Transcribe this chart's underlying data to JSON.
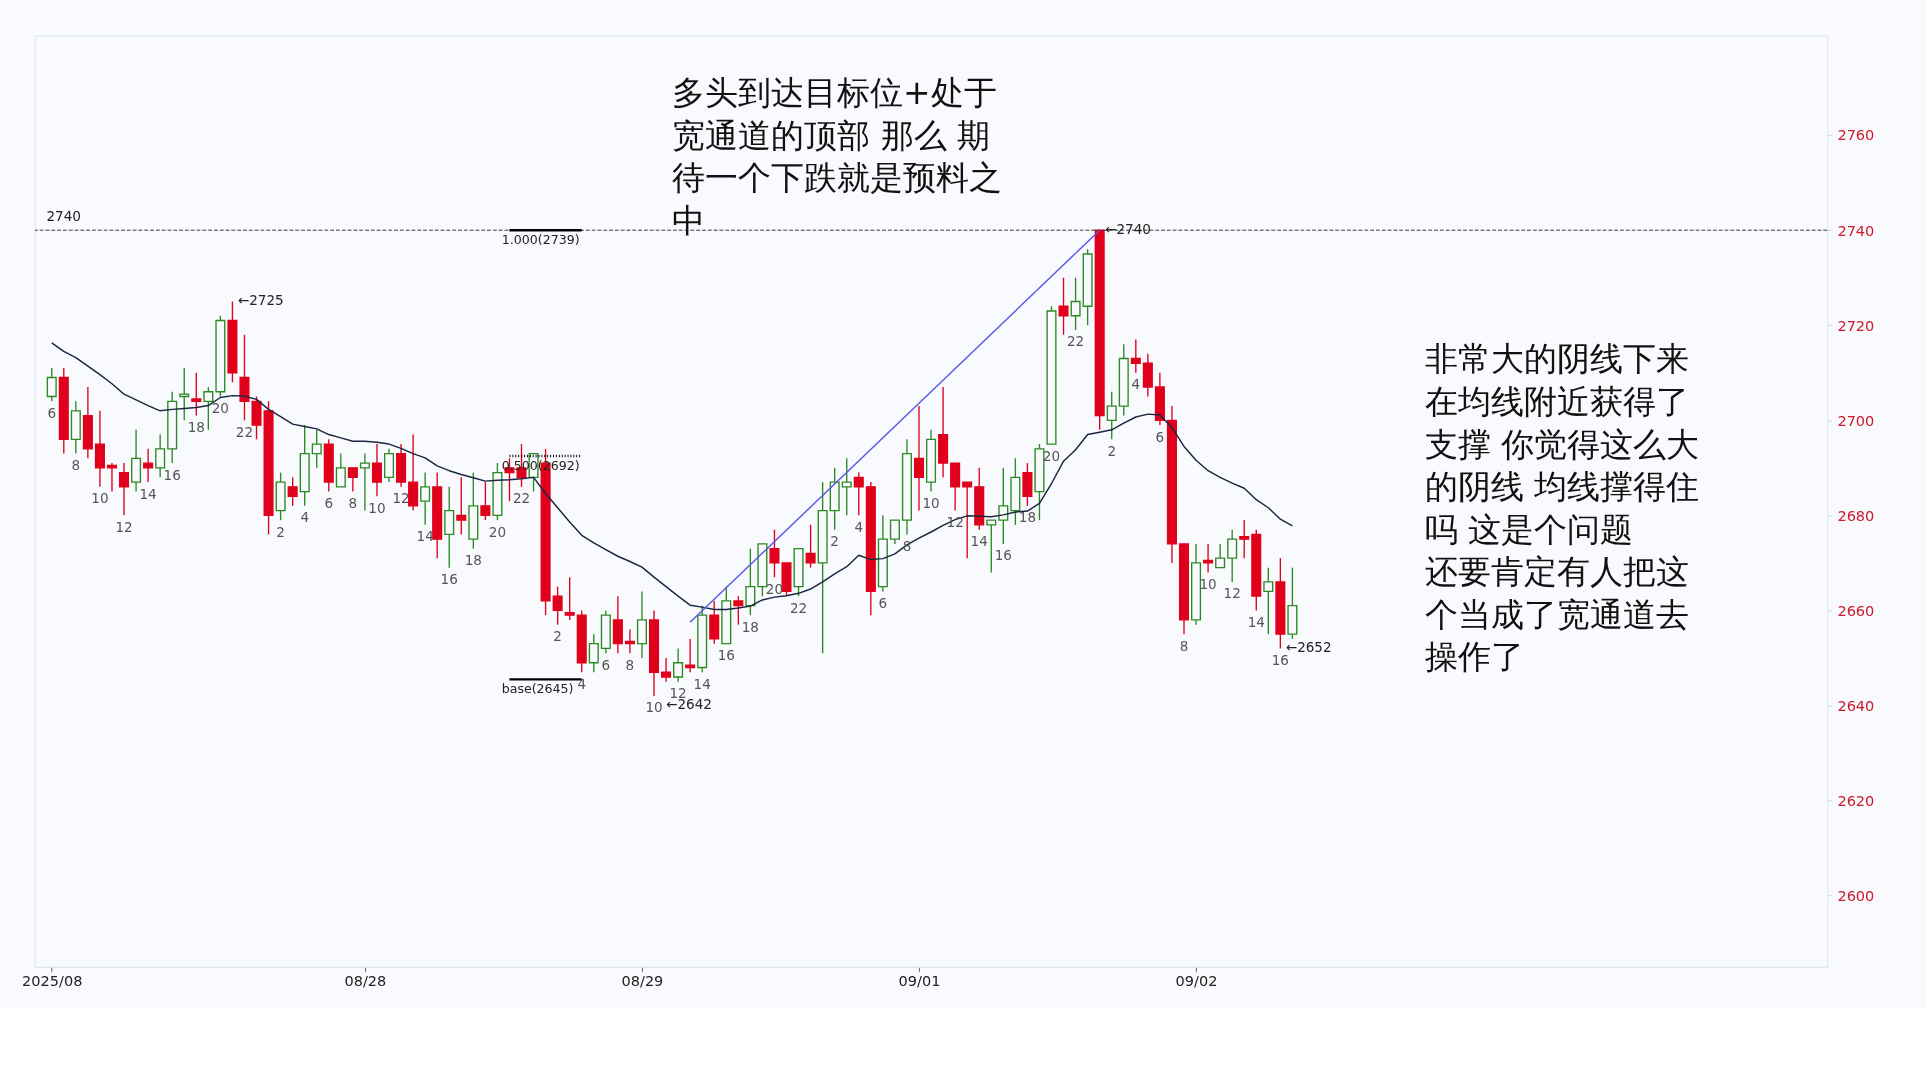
{
  "chart_data": {
    "type": "candlestick",
    "categories": [
      "2025/08",
      null,
      null,
      null,
      null,
      null,
      null,
      null,
      null,
      null,
      null,
      null,
      null,
      null,
      null,
      null,
      null,
      null,
      null,
      null,
      null,
      null,
      null,
      null,
      null,
      null,
      "08/28",
      null,
      null,
      null,
      null,
      null,
      null,
      null,
      null,
      null,
      null,
      null,
      null,
      null,
      null,
      null,
      null,
      null,
      null,
      null,
      null,
      null,
      null,
      "08/29",
      null,
      null,
      null,
      null,
      null,
      null,
      null,
      null,
      null,
      null,
      null,
      null,
      null,
      null,
      null,
      null,
      null,
      null,
      null,
      null,
      null,
      null,
      "09/01",
      null,
      null,
      null,
      null,
      null,
      null,
      null,
      null,
      null,
      null,
      null,
      null,
      null,
      null,
      null,
      null,
      null,
      null,
      null,
      null,
      null,
      null,
      "09/02",
      null,
      null,
      null,
      null,
      null,
      null,
      null,
      null
    ],
    "ohlc": [
      [
        2705,
        2711,
        2704,
        2709
      ],
      [
        2709,
        2711,
        2693,
        2696
      ],
      [
        2696,
        2704,
        2693,
        2702
      ],
      [
        2701,
        2707,
        2692,
        2694
      ],
      [
        2695,
        2702,
        2686,
        2690
      ],
      [
        2690.5,
        2691,
        2685,
        2690
      ],
      [
        2689,
        2691,
        2680,
        2686
      ],
      [
        2687,
        2698,
        2685,
        2692
      ],
      [
        2691,
        2694,
        2687,
        2690
      ],
      [
        2690,
        2697,
        2688,
        2694
      ],
      [
        2694,
        2706,
        2691,
        2704
      ],
      [
        2705,
        2711,
        2700,
        2705.5
      ],
      [
        2704.5,
        2710,
        2701,
        2704
      ],
      [
        2704,
        2707,
        2698,
        2706
      ],
      [
        2706,
        2722,
        2705,
        2721
      ],
      [
        2721,
        2725,
        2708,
        2710
      ],
      [
        2709,
        2718,
        2700,
        2704
      ],
      [
        2704,
        2705,
        2696,
        2699
      ],
      [
        2702,
        2704,
        2676,
        2680
      ],
      [
        2681,
        2689,
        2679,
        2687
      ],
      [
        2686,
        2688,
        2682,
        2684
      ],
      [
        2685,
        2699,
        2682,
        2693
      ],
      [
        2693,
        2698,
        2690,
        2695
      ],
      [
        2695,
        2696,
        2685,
        2687
      ],
      [
        2686,
        2693,
        2686,
        2690
      ],
      [
        2690,
        2690,
        2685,
        2688
      ],
      [
        2690,
        2693,
        2681,
        2691
      ],
      [
        2691,
        2695,
        2684,
        2687
      ],
      [
        2688,
        2694,
        2687,
        2693
      ],
      [
        2693,
        2695,
        2686,
        2687
      ],
      [
        2687,
        2697,
        2681,
        2682
      ],
      [
        2683,
        2689,
        2678,
        2686
      ],
      [
        2686,
        2689,
        2671,
        2675
      ],
      [
        2676,
        2686,
        2669,
        2681
      ],
      [
        2680,
        2688,
        2676,
        2679
      ],
      [
        2675,
        2689,
        2673,
        2682
      ],
      [
        2682,
        2687,
        2679,
        2680
      ],
      [
        2680,
        2691,
        2679,
        2689
      ],
      [
        2690,
        2692,
        2683,
        2689
      ],
      [
        2690,
        2695,
        2686,
        2688
      ],
      [
        2688,
        2693,
        2685,
        2693
      ],
      [
        2691,
        2694,
        2659,
        2662
      ],
      [
        2663,
        2665,
        2657,
        2660
      ],
      [
        2659.5,
        2667,
        2658,
        2659
      ],
      [
        2659,
        2660,
        2647,
        2649
      ],
      [
        2649,
        2655,
        2647,
        2653
      ],
      [
        2652,
        2660,
        2651,
        2659
      ],
      [
        2658,
        2663,
        2651,
        2653
      ],
      [
        2653.5,
        2656,
        2651,
        2653
      ],
      [
        2653,
        2664,
        2650,
        2658
      ],
      [
        2658,
        2660,
        2642,
        2647
      ],
      [
        2647,
        2650,
        2645,
        2646
      ],
      [
        2646,
        2652,
        2645,
        2649
      ],
      [
        2648.5,
        2654,
        2647,
        2648
      ],
      [
        2648,
        2661,
        2647,
        2659
      ],
      [
        2659,
        2662,
        2653,
        2654
      ],
      [
        2653,
        2665,
        2653,
        2662
      ],
      [
        2662,
        2663,
        2657,
        2661
      ],
      [
        2661,
        2673,
        2659,
        2665
      ],
      [
        2665,
        2674,
        2663,
        2674
      ],
      [
        2673,
        2677,
        2667,
        2670
      ],
      [
        2670,
        2670,
        2663,
        2664
      ],
      [
        2665,
        2673,
        2663,
        2673
      ],
      [
        2672,
        2678,
        2669,
        2670
      ],
      [
        2670,
        2687,
        2651,
        2681
      ],
      [
        2681,
        2690,
        2677,
        2687
      ],
      [
        2686,
        2692,
        2680,
        2687
      ],
      [
        2688,
        2689,
        2680,
        2686
      ],
      [
        2686,
        2687,
        2659,
        2664
      ],
      [
        2665,
        2680,
        2664,
        2675
      ],
      [
        2675,
        2679,
        2674,
        2679
      ],
      [
        2679,
        2696,
        2676,
        2693
      ],
      [
        2692,
        2703,
        2681,
        2688
      ],
      [
        2687,
        2698,
        2685,
        2696
      ],
      [
        2697,
        2707,
        2688,
        2691
      ],
      [
        2691,
        2691,
        2681,
        2686
      ],
      [
        2687,
        2687,
        2671,
        2686
      ],
      [
        2686,
        2690,
        2677,
        2678
      ],
      [
        2678,
        2679,
        2668,
        2679
      ],
      [
        2679,
        2690,
        2674,
        2682
      ],
      [
        2681,
        2692,
        2678,
        2688
      ],
      [
        2689,
        2691,
        2682,
        2684
      ],
      [
        2685,
        2695,
        2679,
        2694
      ],
      [
        2695,
        2724,
        2695,
        2723
      ],
      [
        2724,
        2730,
        2718,
        2722
      ],
      [
        2722,
        2730,
        2719,
        2725
      ],
      [
        2724,
        2736,
        2720,
        2735
      ],
      [
        2740,
        2740,
        2698,
        2701
      ],
      [
        2700,
        2706,
        2696,
        2703
      ],
      [
        2703,
        2716,
        2701,
        2713
      ],
      [
        2713,
        2717,
        2710,
        2712
      ],
      [
        2712,
        2714,
        2705,
        2707
      ],
      [
        2707,
        2710,
        2699,
        2700
      ],
      [
        2700,
        2703,
        2670,
        2674
      ],
      [
        2674,
        2674,
        2655,
        2658
      ],
      [
        2658,
        2674,
        2657,
        2670
      ],
      [
        2670.5,
        2674,
        2668,
        2670
      ],
      [
        2669,
        2674,
        2669,
        2671
      ],
      [
        2671,
        2677,
        2666,
        2675
      ],
      [
        2675.5,
        2679,
        2671,
        2675
      ],
      [
        2676,
        2677,
        2660,
        2663
      ],
      [
        2664,
        2669,
        2655,
        2666
      ],
      [
        2666,
        2671,
        2652,
        2655
      ],
      [
        2655,
        2669,
        2654,
        2661
      ]
    ],
    "colors": [
      "#2b8a22",
      "#e0001b",
      "#2b8a22",
      "#e0001b",
      "#e0001b",
      "#e0001b",
      "#e0001b",
      "#2b8a22",
      "#e0001b",
      "#2b8a22",
      "#2b8a22",
      "#2b8a22",
      "#e0001b",
      "#2b8a22",
      "#2b8a22",
      "#e0001b",
      "#e0001b",
      "#e0001b",
      "#e0001b",
      "#2b8a22",
      "#e0001b",
      "#2b8a22",
      "#2b8a22",
      "#e0001b",
      "#2b8a22",
      "#e0001b",
      "#2b8a22",
      "#e0001b",
      "#2b8a22",
      "#e0001b",
      "#e0001b",
      "#2b8a22",
      "#e0001b",
      "#2b8a22",
      "#e0001b",
      "#2b8a22",
      "#e0001b",
      "#2b8a22",
      "#e0001b",
      "#e0001b",
      "#2b8a22",
      "#e0001b",
      "#e0001b",
      "#e0001b",
      "#e0001b",
      "#2b8a22",
      "#2b8a22",
      "#e0001b",
      "#e0001b",
      "#2b8a22",
      "#e0001b",
      "#e0001b",
      "#2b8a22",
      "#e0001b",
      "#2b8a22",
      "#e0001b",
      "#2b8a22",
      "#e0001b",
      "#2b8a22",
      "#2b8a22",
      "#e0001b",
      "#e0001b",
      "#2b8a22",
      "#e0001b",
      "#2b8a22",
      "#2b8a22",
      "#2b8a22",
      "#e0001b",
      "#e0001b",
      "#2b8a22",
      "#2b8a22",
      "#2b8a22",
      "#e0001b",
      "#2b8a22",
      "#e0001b",
      "#e0001b",
      "#e0001b",
      "#e0001b",
      "#2b8a22",
      "#2b8a22",
      "#2b8a22",
      "#e0001b",
      "#2b8a22",
      "#2b8a22",
      "#e0001b",
      "#2b8a22",
      "#2b8a22",
      "#e0001b",
      "#2b8a22",
      "#2b8a22",
      "#e0001b",
      "#e0001b",
      "#e0001b",
      "#e0001b",
      "#e0001b",
      "#2b8a22",
      "#e0001b",
      "#2b8a22",
      "#2b8a22",
      "#e0001b",
      "#e0001b",
      "#2b8a22",
      "#e0001b",
      "#2b8a22"
    ],
    "value_labels": [
      "6",
      null,
      "8",
      null,
      "10",
      null,
      "12",
      null,
      "14",
      null,
      "16",
      null,
      "18",
      null,
      "20",
      null,
      "22",
      null,
      null,
      "2",
      null,
      "4",
      null,
      "6",
      null,
      "8",
      null,
      "10",
      null,
      "12",
      null,
      "14",
      null,
      "16",
      null,
      "18",
      null,
      "20",
      null,
      "22",
      null,
      null,
      "2",
      null,
      "4",
      null,
      "6",
      null,
      "8",
      null,
      "10",
      null,
      "12",
      null,
      "14",
      null,
      "16",
      null,
      "18",
      null,
      "20",
      null,
      "22",
      null,
      null,
      "2",
      null,
      "4",
      null,
      "6",
      null,
      "8",
      null,
      "10",
      null,
      "12",
      null,
      "14",
      null,
      "16",
      null,
      "18",
      null,
      "20",
      null,
      "22",
      null,
      null,
      "2",
      null,
      "4",
      null,
      "6",
      null,
      "8",
      null,
      "10",
      null,
      "12",
      null,
      "14",
      null,
      "16",
      null
    ],
    "series": [
      {
        "type": "line",
        "color": "#1c2541",
        "values": [
          2716.3,
          2714.5,
          2713.2,
          2711.4,
          2709.6,
          2707.7,
          2705.5,
          2704.3,
          2703.1,
          2702,
          2702.3,
          2702.5,
          2702.7,
          2703.1,
          2704.8,
          2705.2,
          2705.1,
          2704.4,
          2702.3,
          2700.8,
          2699.2,
          2698.7,
          2698.2,
          2697,
          2696.3,
          2695.6,
          2695.6,
          2695.4,
          2695,
          2694.1,
          2693,
          2692.1,
          2690.4,
          2689.4,
          2688.6,
          2687.9,
          2687.2,
          2687.4,
          2687.5,
          2687.7,
          2688,
          2684.6,
          2681.6,
          2678.6,
          2675.8,
          2674.2,
          2672.8,
          2671.4,
          2670.3,
          2669.1,
          2667,
          2665,
          2663,
          2661.1,
          2660.7,
          2660.2,
          2660.2,
          2660.5,
          2660.9,
          2662.2,
          2662.8,
          2663.1,
          2663.6,
          2664.5,
          2666,
          2667.7,
          2669.2,
          2671.6,
          2670.7,
          2670.9,
          2671.9,
          2673.8,
          2675.2,
          2676.5,
          2677.9,
          2679.1,
          2679.9,
          2679.8,
          2679.7,
          2680.1,
          2680.7,
          2680.9,
          2682.5,
          2686.7,
          2691.4,
          2693.8,
          2697,
          2697.5,
          2698,
          2699.4,
          2700.7,
          2701.3,
          2701.1,
          2698.5,
          2694.5,
          2691.6,
          2689.4,
          2688,
          2686.8,
          2685.7,
          2683.3,
          2681.6,
          2679.2,
          2677.8
        ]
      },
      {
        "type": "line",
        "color": "#5a5ae6",
        "values": [
          null,
          null,
          null,
          null,
          null,
          null,
          null,
          null,
          null,
          null,
          null,
          null,
          null,
          null,
          null,
          null,
          null,
          null,
          null,
          null,
          null,
          null,
          null,
          null,
          null,
          null,
          null,
          null,
          null,
          null,
          null,
          null,
          null,
          null,
          null,
          null,
          null,
          null,
          null,
          null,
          null,
          null,
          null,
          null,
          null,
          null,
          null,
          null,
          null,
          null,
          null,
          null,
          null,
          2657.5,
          null,
          null,
          null,
          null,
          null,
          null,
          null,
          null,
          null,
          null,
          null,
          null,
          null,
          null,
          null,
          null,
          null,
          null,
          null,
          null,
          null,
          null,
          null,
          null,
          null,
          null,
          null,
          null,
          null,
          null,
          null,
          null,
          null,
          2740,
          null,
          null,
          null,
          null,
          null,
          null,
          null,
          null,
          null,
          null,
          null,
          null,
          null,
          null,
          null,
          null
        ]
      },
      {
        "type": "line",
        "name": "1.000(2739)",
        "color": "#000000",
        "line_style": "solid",
        "values": [
          null,
          null,
          null,
          null,
          null,
          null,
          null,
          null,
          null,
          null,
          null,
          null,
          null,
          null,
          null,
          null,
          null,
          null,
          null,
          null,
          null,
          null,
          null,
          null,
          null,
          null,
          null,
          null,
          null,
          null,
          null,
          null,
          null,
          null,
          null,
          null,
          null,
          null,
          2740,
          2740,
          2740,
          2740,
          2740,
          2740,
          2740,
          null,
          null,
          null,
          null,
          null,
          null,
          null,
          null,
          null,
          null,
          null,
          null,
          null,
          null,
          null,
          null,
          null,
          null,
          null,
          null,
          null,
          null,
          null,
          null,
          null,
          null,
          null,
          null,
          null,
          null,
          null,
          null,
          null,
          null,
          null,
          null,
          null,
          null,
          null,
          null,
          null,
          null,
          null,
          null,
          null,
          null,
          null,
          null,
          null,
          null,
          null,
          null,
          null,
          null,
          null,
          null,
          null,
          null,
          null
        ]
      },
      {
        "type": "line",
        "name": "0.500(2692)",
        "color": "#000000",
        "line_style": "dotted",
        "values": [
          null,
          null,
          null,
          null,
          null,
          null,
          null,
          null,
          null,
          null,
          null,
          null,
          null,
          null,
          null,
          null,
          null,
          null,
          null,
          null,
          null,
          null,
          null,
          null,
          null,
          null,
          null,
          null,
          null,
          null,
          null,
          null,
          null,
          null,
          null,
          null,
          null,
          null,
          2692.5,
          2692.5,
          2692.5,
          2692.5,
          2692.5,
          2692.5,
          2692.5,
          null,
          null,
          null,
          null,
          null,
          null,
          null,
          null,
          null,
          null,
          null,
          null,
          null,
          null,
          null,
          null,
          null,
          null,
          null,
          null,
          null,
          null,
          null,
          null,
          null,
          null,
          null,
          null,
          null,
          null,
          null,
          null,
          null,
          null,
          null,
          null,
          null,
          null,
          null,
          null,
          null,
          null,
          null,
          null,
          null,
          null,
          null,
          null,
          null,
          null,
          null,
          null,
          null,
          null,
          null,
          null,
          null,
          null,
          null
        ]
      },
      {
        "type": "line",
        "name": "base(2645)",
        "color": "#000000",
        "line_style": "solid",
        "values": [
          null,
          null,
          null,
          null,
          null,
          null,
          null,
          null,
          null,
          null,
          null,
          null,
          null,
          null,
          null,
          null,
          null,
          null,
          null,
          null,
          null,
          null,
          null,
          null,
          null,
          null,
          null,
          null,
          null,
          null,
          null,
          null,
          null,
          null,
          null,
          null,
          null,
          null,
          2645.5,
          2645.5,
          2645.5,
          2645.5,
          2645.5,
          2645.5,
          2645.5,
          null,
          null,
          null,
          null,
          null,
          null,
          null,
          null,
          null,
          null,
          null,
          null,
          null,
          null,
          null,
          null,
          null,
          null,
          null,
          null,
          null,
          null,
          null,
          null,
          null,
          null,
          null,
          null,
          null,
          null,
          null,
          null,
          null,
          null,
          null,
          null,
          null,
          null,
          null,
          null,
          null,
          null,
          null,
          null,
          null,
          null,
          null,
          null,
          null,
          null,
          null,
          null,
          null,
          null,
          null,
          null,
          null,
          null,
          null
        ]
      }
    ],
    "ylim": [
      2585,
      2781
    ],
    "yticks": [
      2600,
      2620,
      2640,
      2660,
      2680,
      2700,
      2720,
      2740,
      2760
    ],
    "ref_lines": [
      {
        "axis": "y",
        "value": 2740,
        "label": "2740",
        "color": "#333333",
        "line_style": "dashed"
      }
    ],
    "annotations": [
      "←2725",
      "←2740",
      "←2642",
      "←2652",
      "多头到达目标位+处于宽通道的顶部 那么 期待一个下跌就是预料之中",
      "非常大的阴线下来在均线附近获得了支撑 你觉得这么大的阴线 均线撑得住吗 这是个问题",
      "还要肯定有人把这个当成了宽通道去操作了"
    ]
  }
}
